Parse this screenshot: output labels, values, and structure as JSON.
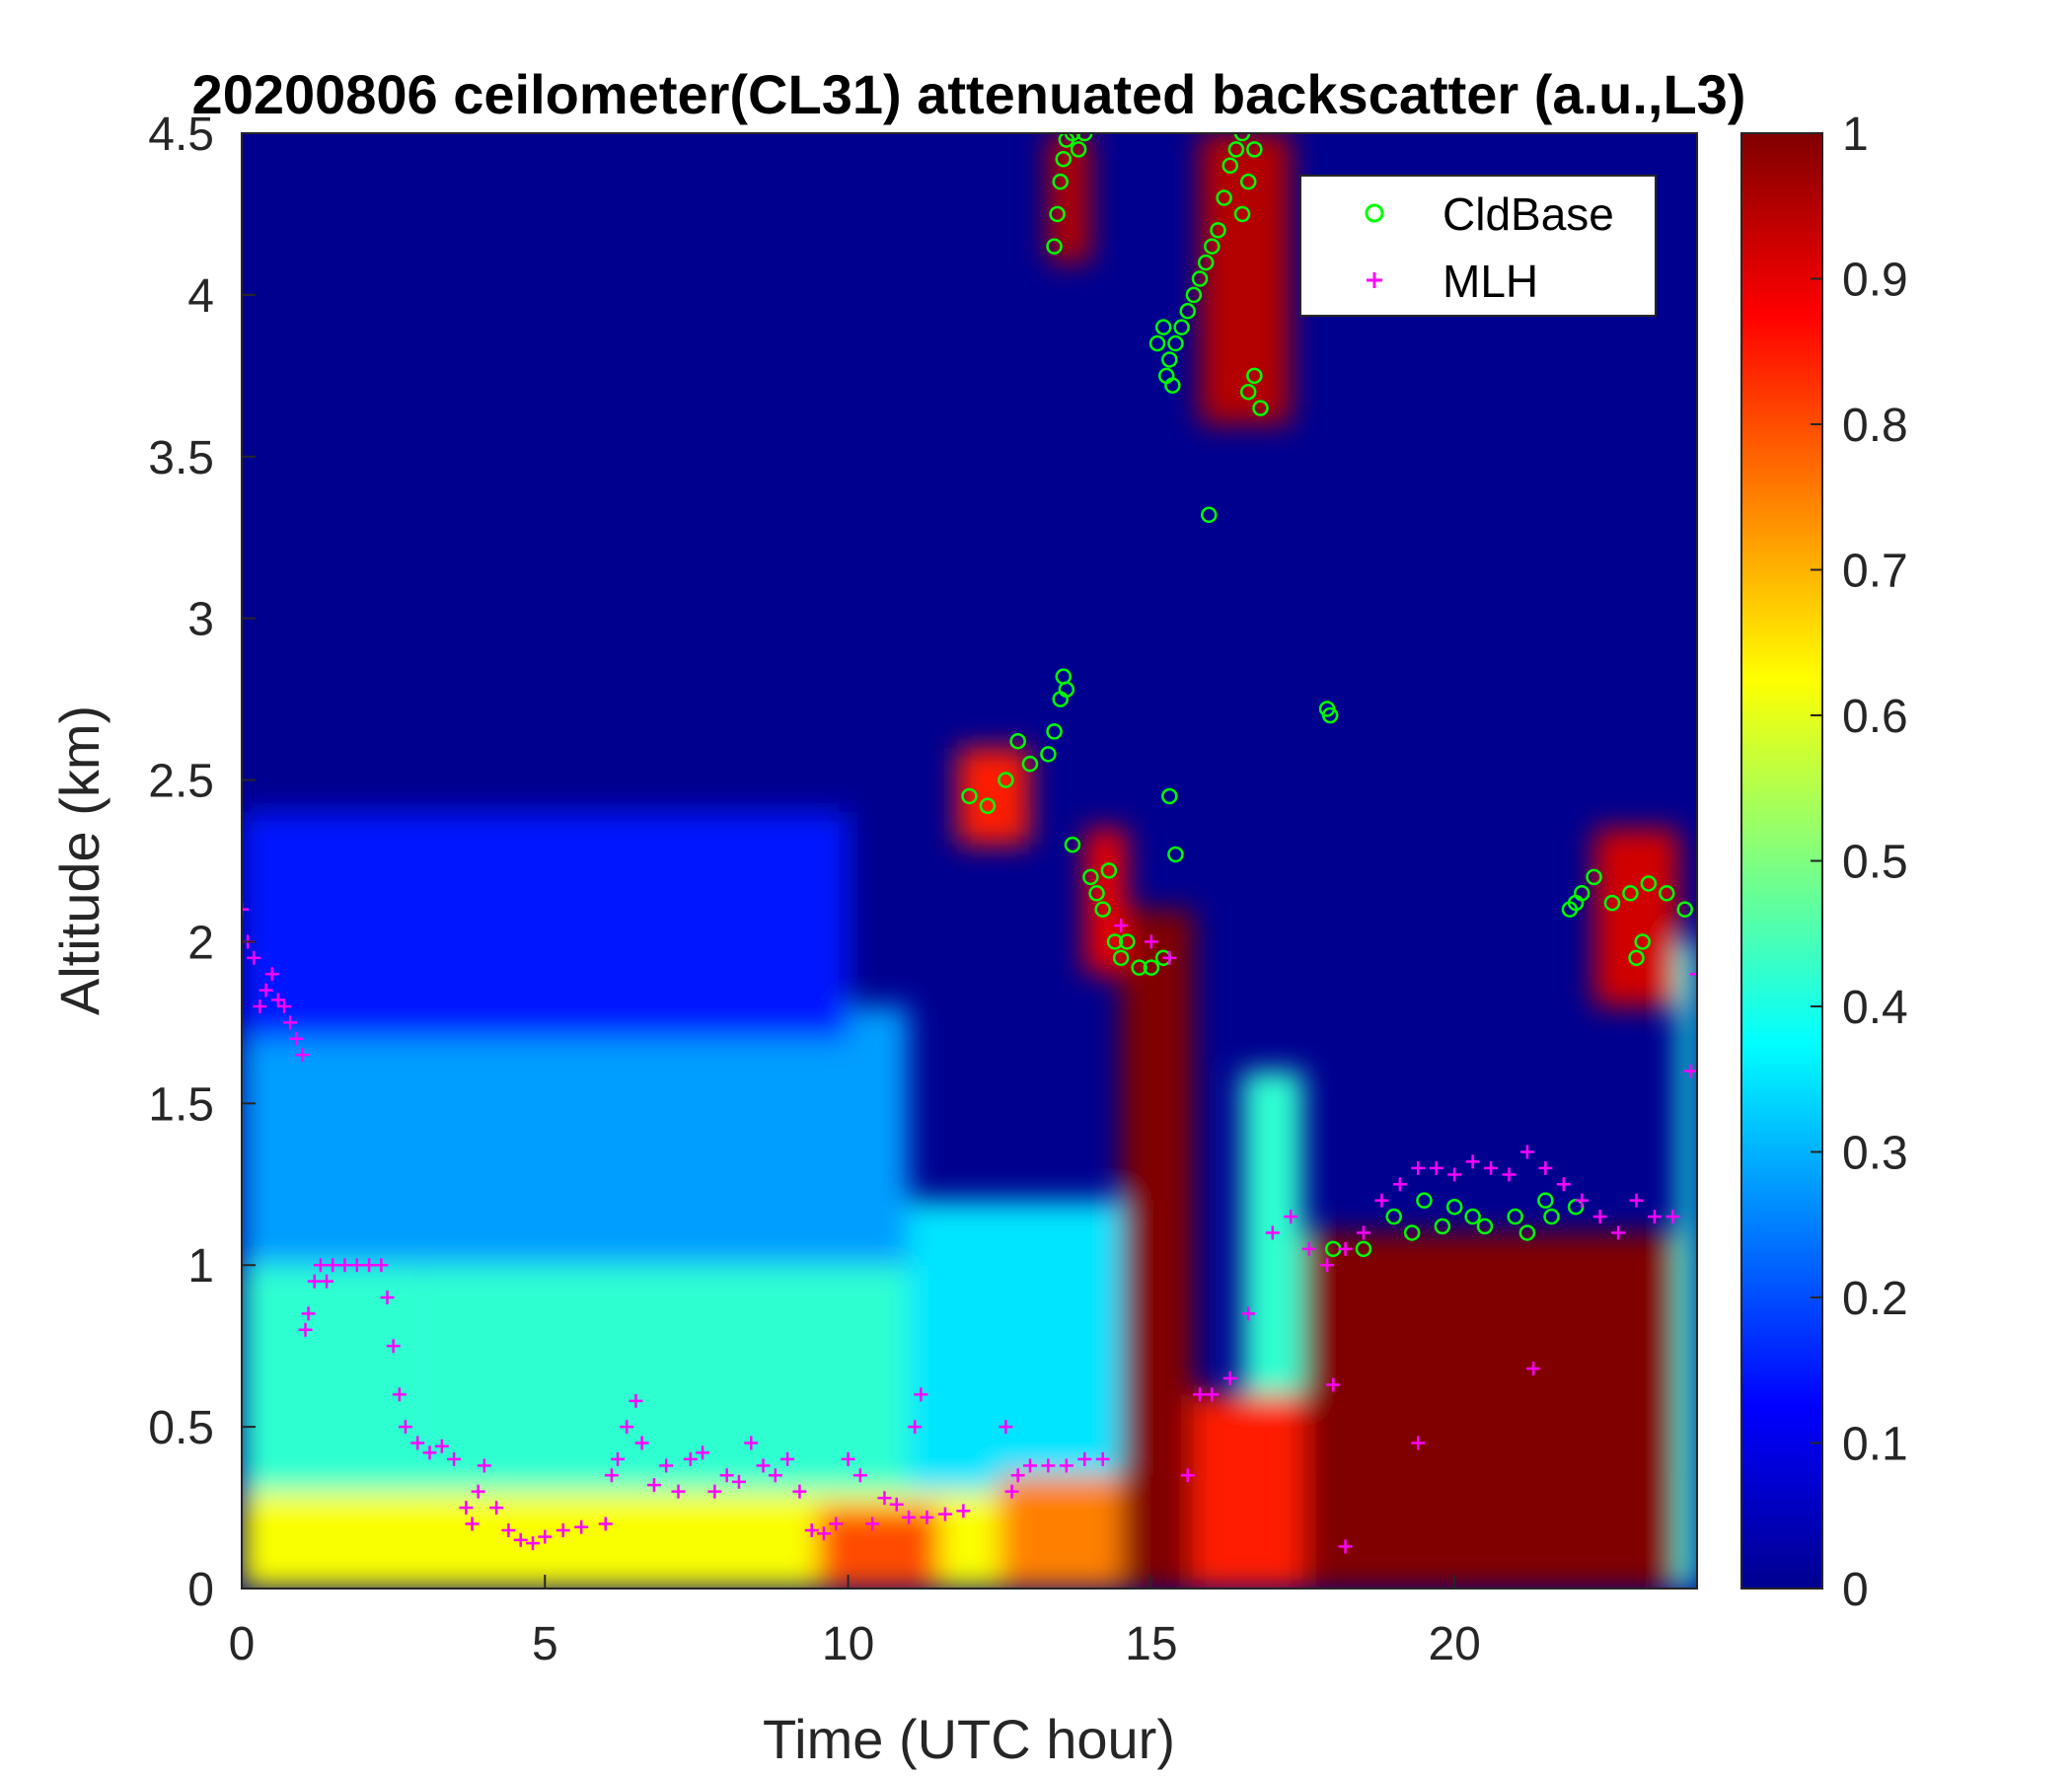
{
  "chart_data": {
    "type": "heatmap",
    "title": "20200806 ceilometer(CL31) attenuated backscatter (a.u.,L3)",
    "xlabel": "Time (UTC hour)",
    "ylabel": "Altitude (km)",
    "xlim": [
      0,
      24
    ],
    "ylim": [
      0,
      4.5
    ],
    "xticks": [
      "0",
      "5",
      "10",
      "15",
      "20"
    ],
    "yticks": [
      "0",
      "0.5",
      "1",
      "1.5",
      "2",
      "2.5",
      "3",
      "3.5",
      "4",
      "4.5"
    ],
    "colorbar": {
      "colormap": "jet",
      "range": [
        0,
        1
      ],
      "ticks": [
        "0",
        "0.1",
        "0.2",
        "0.3",
        "0.4",
        "0.5",
        "0.6",
        "0.7",
        "0.8",
        "0.9",
        "1"
      ]
    },
    "legend": {
      "position": "top-right",
      "entries": [
        {
          "name": "CldBase",
          "marker": "circle",
          "color": "#00ff00"
        },
        {
          "name": "MLH",
          "marker": "plus",
          "color": "#ff00ff"
        }
      ]
    },
    "backscatter_regions": [
      {
        "x0": 0,
        "x1": 24,
        "y0": 0,
        "y1": 0.35,
        "value": 0.62
      },
      {
        "x0": 0,
        "x1": 3,
        "y0": 0.3,
        "y1": 1.3,
        "value": 0.42
      },
      {
        "x0": 3,
        "x1": 11,
        "y0": 0.3,
        "y1": 1.1,
        "value": 0.42
      },
      {
        "x0": 0,
        "x1": 11,
        "y0": 1.0,
        "y1": 1.8,
        "value": 0.28
      },
      {
        "x0": 0,
        "x1": 10,
        "y0": 1.7,
        "y1": 2.4,
        "value": 0.15
      },
      {
        "x0": 11,
        "x1": 14.5,
        "y0": 0.3,
        "y1": 1.2,
        "value": 0.35
      },
      {
        "x0": 9.5,
        "x1": 11.5,
        "y0": 0,
        "y1": 0.25,
        "value": 0.8
      },
      {
        "x0": 12.5,
        "x1": 14.5,
        "y0": 0,
        "y1": 0.35,
        "value": 0.75
      },
      {
        "x0": 14.5,
        "x1": 15.7,
        "y0": 0,
        "y1": 2.1,
        "value": 1.0
      },
      {
        "x0": 15.7,
        "x1": 17.5,
        "y0": 0,
        "y1": 0.6,
        "value": 0.85
      },
      {
        "x0": 17.5,
        "x1": 23.7,
        "y0": 0,
        "y1": 1.1,
        "value": 1.0
      },
      {
        "x0": 16.5,
        "x1": 17.5,
        "y0": 0.6,
        "y1": 1.6,
        "value": 0.42
      },
      {
        "x0": 22.3,
        "x1": 23.7,
        "y0": 1.8,
        "y1": 2.35,
        "value": 0.92
      },
      {
        "x0": 23.7,
        "x1": 24,
        "y0": 0,
        "y1": 2.0,
        "value": 0.4
      },
      {
        "x0": 13.3,
        "x1": 14.0,
        "y0": 4.1,
        "y1": 4.5,
        "value": 0.95
      },
      {
        "x0": 15.8,
        "x1": 17.3,
        "y0": 3.6,
        "y1": 4.5,
        "value": 0.95
      },
      {
        "x0": 11.8,
        "x1": 13.0,
        "y0": 2.3,
        "y1": 2.6,
        "value": 0.85
      },
      {
        "x0": 13.9,
        "x1": 14.6,
        "y0": 1.9,
        "y1": 2.35,
        "value": 0.9
      }
    ],
    "series": [
      {
        "name": "CldBase",
        "x": [
          12.0,
          12.3,
          12.6,
          12.8,
          13.0,
          13.3,
          13.4,
          13.5,
          13.55,
          13.6,
          13.7,
          13.4,
          13.45,
          13.5,
          13.55,
          13.6,
          13.7,
          13.8,
          13.9,
          14.0,
          14.1,
          14.2,
          14.3,
          14.4,
          14.5,
          14.6,
          14.8,
          15.0,
          15.2,
          15.3,
          15.4,
          15.1,
          15.2,
          15.25,
          15.3,
          15.35,
          15.4,
          15.5,
          15.6,
          15.7,
          15.8,
          15.9,
          16.0,
          16.1,
          16.2,
          16.3,
          16.4,
          16.5,
          16.6,
          16.7,
          16.8,
          16.5,
          16.6,
          16.7,
          15.95,
          17.9,
          17.95,
          19.0,
          19.5,
          20.0,
          20.5,
          21.0,
          21.5,
          22.0,
          21.9,
          22.0,
          22.1,
          22.3,
          22.6,
          22.9,
          23.2,
          23.5,
          23.8,
          23.0,
          23.1,
          18.0,
          18.5,
          19.3,
          19.8,
          20.3,
          21.2,
          21.6
        ],
        "y": [
          2.45,
          2.42,
          2.5,
          2.62,
          2.55,
          2.58,
          2.65,
          2.75,
          2.82,
          2.78,
          2.3,
          4.15,
          4.25,
          4.35,
          4.42,
          4.48,
          4.5,
          4.45,
          4.5,
          2.2,
          2.15,
          2.1,
          2.22,
          2.0,
          1.95,
          2.0,
          1.92,
          1.92,
          1.95,
          2.45,
          2.27,
          3.85,
          3.9,
          3.75,
          3.8,
          3.72,
          3.85,
          3.9,
          3.95,
          4.0,
          4.05,
          4.1,
          4.15,
          4.2,
          4.3,
          4.4,
          4.45,
          4.5,
          3.7,
          3.75,
          3.65,
          4.25,
          4.35,
          4.45,
          3.32,
          2.72,
          2.7,
          1.15,
          1.2,
          1.18,
          1.12,
          1.15,
          1.2,
          1.18,
          2.1,
          2.12,
          2.15,
          2.2,
          2.12,
          2.15,
          2.18,
          2.15,
          2.1,
          1.95,
          2.0,
          1.05,
          1.05,
          1.1,
          1.12,
          1.15,
          1.1,
          1.15
        ]
      },
      {
        "name": "MLH",
        "x": [
          0.0,
          0.1,
          0.2,
          0.3,
          0.4,
          0.5,
          0.6,
          0.7,
          0.8,
          0.9,
          1.0,
          1.05,
          1.1,
          1.2,
          1.3,
          1.4,
          1.5,
          1.7,
          1.9,
          2.1,
          2.3,
          2.4,
          2.5,
          2.6,
          2.7,
          2.9,
          3.1,
          3.3,
          3.5,
          3.7,
          3.8,
          3.9,
          4.0,
          4.2,
          4.4,
          4.6,
          4.8,
          5.0,
          5.3,
          5.6,
          6.0,
          6.1,
          6.2,
          6.35,
          6.5,
          6.6,
          6.8,
          7.0,
          7.2,
          7.4,
          7.6,
          7.8,
          8.0,
          8.2,
          8.4,
          8.6,
          8.8,
          9.0,
          9.2,
          9.4,
          9.6,
          9.8,
          10.0,
          10.2,
          10.4,
          10.6,
          10.8,
          11.0,
          11.3,
          11.6,
          11.9,
          12.7,
          12.8,
          13.0,
          13.3,
          13.6,
          13.9,
          14.2,
          14.5,
          15.0,
          15.3,
          15.6,
          15.8,
          16.0,
          16.3,
          16.6,
          17.0,
          17.3,
          17.6,
          17.9,
          18.2,
          18.5,
          18.8,
          19.1,
          19.4,
          19.7,
          20.0,
          20.3,
          20.6,
          20.9,
          21.2,
          21.5,
          21.8,
          22.1,
          22.4,
          22.7,
          23.0,
          23.3,
          23.6,
          23.9,
          24.0,
          12.6,
          11.1,
          11.2,
          19.4,
          21.3,
          18.2,
          18.0
        ],
        "y": [
          2.1,
          2.0,
          1.95,
          1.8,
          1.85,
          1.9,
          1.82,
          1.8,
          1.75,
          1.7,
          1.65,
          0.8,
          0.85,
          0.95,
          1.0,
          0.95,
          1.0,
          1.0,
          1.0,
          1.0,
          1.0,
          0.9,
          0.75,
          0.6,
          0.5,
          0.45,
          0.42,
          0.44,
          0.4,
          0.25,
          0.2,
          0.3,
          0.38,
          0.25,
          0.18,
          0.15,
          0.14,
          0.16,
          0.18,
          0.19,
          0.2,
          0.35,
          0.4,
          0.5,
          0.58,
          0.45,
          0.32,
          0.38,
          0.3,
          0.4,
          0.42,
          0.3,
          0.35,
          0.33,
          0.45,
          0.38,
          0.35,
          0.4,
          0.3,
          0.18,
          0.17,
          0.2,
          0.4,
          0.35,
          0.2,
          0.28,
          0.26,
          0.22,
          0.22,
          0.23,
          0.24,
          0.3,
          0.35,
          0.38,
          0.38,
          0.38,
          0.4,
          0.4,
          2.05,
          2.0,
          1.95,
          0.35,
          0.6,
          0.6,
          0.65,
          0.85,
          1.1,
          1.15,
          1.05,
          1.0,
          1.05,
          1.1,
          1.2,
          1.25,
          1.3,
          1.3,
          1.28,
          1.32,
          1.3,
          1.28,
          1.35,
          1.3,
          1.25,
          1.2,
          1.15,
          1.1,
          1.2,
          1.15,
          1.15,
          1.6,
          1.9,
          0.5,
          0.5,
          0.6,
          0.45,
          0.68,
          0.13,
          0.63
        ]
      }
    ]
  }
}
